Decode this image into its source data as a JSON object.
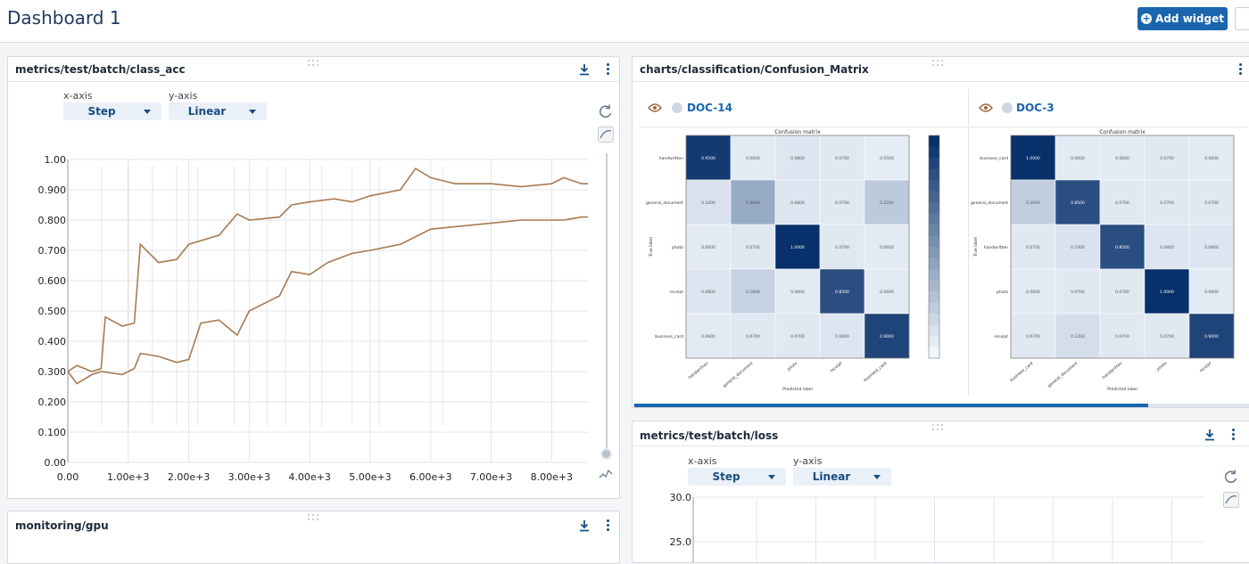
{
  "page": {
    "title": "Dashboard 1",
    "add_widget_label": "Add widget"
  },
  "widgets": {
    "class_acc": {
      "title": "metrics/test/batch/class_acc",
      "x_axis_label": "x-axis",
      "y_axis_label": "y-axis",
      "x_axis_value": "Step",
      "y_axis_value": "Linear",
      "y_ticks": [
        "1.00",
        "0.900",
        "0.800",
        "0.700",
        "0.600",
        "0.500",
        "0.400",
        "0.300",
        "0.200",
        "0.100",
        "0.00"
      ],
      "x_ticks": [
        "0.00",
        "1.00e+3",
        "2.00e+3",
        "3.00e+3",
        "4.00e+3",
        "5.00e+3",
        "6.00e+3",
        "7.00e+3",
        "8.00e+3"
      ],
      "line_color": "#a67c52"
    },
    "confusion": {
      "title": "charts/classification/Confusion_Matrix",
      "experiments": [
        {
          "name": "DOC-14",
          "matrix_title": "Confusion matrix",
          "classes": [
            "handwritten",
            "general_document",
            "photo",
            "receipt",
            "business_card"
          ],
          "y_title": "True label",
          "x_title": "Predicted label"
        },
        {
          "name": "DOC-3",
          "matrix_title": "Confusion matrix",
          "classes": [
            "business_card",
            "general_document",
            "handwritten",
            "photo",
            "receipt"
          ],
          "y_title": "True label",
          "x_title": "Predicted label"
        }
      ]
    },
    "loss": {
      "title": "metrics/test/batch/loss",
      "x_axis_label": "x-axis",
      "y_axis_label": "y-axis",
      "x_axis_value": "Step",
      "y_axis_value": "Linear",
      "y_ticks": [
        "30.0",
        "25.0"
      ]
    },
    "gpu": {
      "title": "monitoring/gpu"
    }
  },
  "chart_data": [
    {
      "type": "line",
      "title": "metrics/test/batch/class_acc",
      "xlim": [
        0,
        8600
      ],
      "ylim": [
        0,
        1.0
      ],
      "series": [
        {
          "x": [
            0,
            150,
            400,
            550,
            620,
            900,
            1100,
            1200,
            1500,
            1800,
            2000,
            2500,
            2800,
            3000,
            3500,
            3700,
            4000,
            4400,
            4700,
            5000,
            5500,
            5750,
            6000,
            6400,
            7000,
            7500,
            8000,
            8200,
            8500,
            8600
          ],
          "values": [
            0.3,
            0.32,
            0.3,
            0.31,
            0.48,
            0.45,
            0.46,
            0.72,
            0.66,
            0.67,
            0.72,
            0.75,
            0.82,
            0.8,
            0.81,
            0.85,
            0.86,
            0.87,
            0.86,
            0.88,
            0.9,
            0.97,
            0.94,
            0.92,
            0.92,
            0.91,
            0.92,
            0.94,
            0.92,
            0.92
          ]
        },
        {
          "x": [
            0,
            150,
            400,
            550,
            900,
            1100,
            1200,
            1500,
            1800,
            2000,
            2200,
            2500,
            2800,
            3000,
            3300,
            3500,
            3700,
            4000,
            4300,
            4700,
            5000,
            5500,
            6000,
            6500,
            7000,
            7500,
            8000,
            8200,
            8500,
            8600
          ],
          "values": [
            0.3,
            0.26,
            0.29,
            0.3,
            0.29,
            0.31,
            0.36,
            0.35,
            0.33,
            0.34,
            0.46,
            0.47,
            0.42,
            0.5,
            0.53,
            0.55,
            0.63,
            0.62,
            0.66,
            0.69,
            0.7,
            0.72,
            0.77,
            0.78,
            0.79,
            0.8,
            0.8,
            0.8,
            0.81,
            0.81
          ]
        }
      ]
    },
    {
      "type": "heatmap",
      "title": "Confusion matrix",
      "experiment": "DOC-14",
      "xlabel": "Predicted label",
      "ylabel": "True label",
      "categories": [
        "handwritten",
        "general_document",
        "photo",
        "receipt",
        "business_card"
      ],
      "values": [
        [
          0.95,
          0.06,
          0.08,
          0.07,
          0.05
        ],
        [
          0.1,
          0.38,
          0.08,
          0.07,
          0.22
        ],
        [
          0.06,
          0.07,
          1.0,
          0.07,
          0.06
        ],
        [
          0.08,
          0.18,
          0.06,
          0.85,
          0.06
        ],
        [
          0.06,
          0.07,
          0.07,
          0.08,
          0.9
        ]
      ]
    },
    {
      "type": "heatmap",
      "title": "Confusion matrix",
      "experiment": "DOC-3",
      "xlabel": "Predicted label",
      "ylabel": "True label",
      "categories": [
        "business_card",
        "general_document",
        "handwritten",
        "photo",
        "receipt"
      ],
      "values": [
        [
          1.0,
          0.06,
          0.06,
          0.07,
          0.06
        ],
        [
          0.2,
          0.85,
          0.07,
          0.07,
          0.07
        ],
        [
          0.07,
          0.1,
          0.85,
          0.08,
          0.08
        ],
        [
          0.06,
          0.07,
          0.07,
          1.0,
          0.06
        ],
        [
          0.07,
          0.12,
          0.07,
          0.07,
          0.9
        ]
      ]
    },
    {
      "type": "line",
      "title": "metrics/test/batch/loss",
      "ylim": [
        25.0,
        30.0
      ]
    }
  ]
}
